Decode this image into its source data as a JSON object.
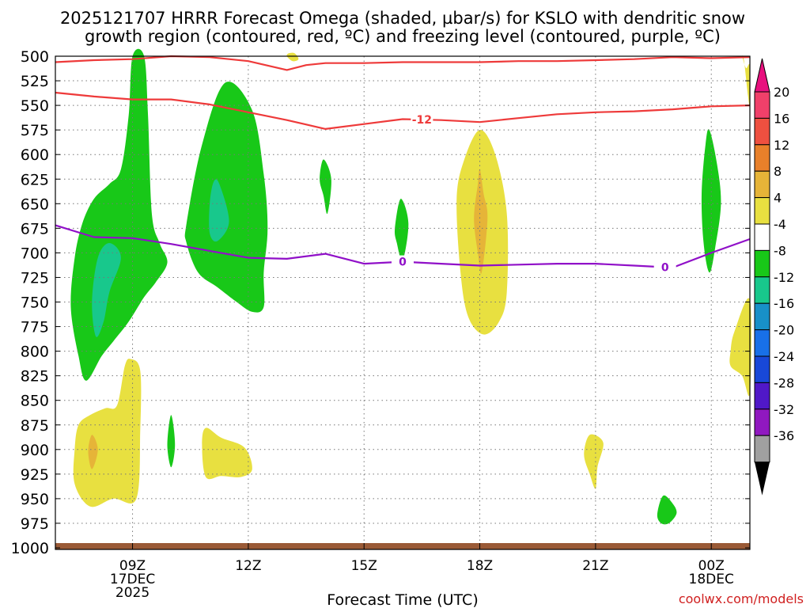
{
  "chart_data": {
    "type": "time-height contour",
    "title_line1": "2025121707 HRRR Forecast Omega (shaded, µbar/s) for KSLO with dendritic snow",
    "title_line2": "growth region (contoured, red, ºC) and freezing level (contoured, purple, ºC)",
    "xlabel": "Forecast Time (UTC)",
    "credit": "coolwx.com/models",
    "x_range_hours": [
      7,
      25
    ],
    "y_range_mb": [
      500,
      1000
    ],
    "y_ticks": [
      500,
      525,
      550,
      575,
      600,
      625,
      650,
      675,
      700,
      725,
      750,
      775,
      800,
      825,
      850,
      875,
      900,
      925,
      950,
      975,
      1000
    ],
    "x_ticks": [
      {
        "hour": 9,
        "label": "09Z",
        "sub1": "17DEC",
        "sub2": "2025"
      },
      {
        "hour": 12,
        "label": "12Z",
        "sub1": "",
        "sub2": ""
      },
      {
        "hour": 15,
        "label": "15Z",
        "sub1": "",
        "sub2": ""
      },
      {
        "hour": 18,
        "label": "18Z",
        "sub1": "",
        "sub2": ""
      },
      {
        "hour": 21,
        "label": "21Z",
        "sub1": "",
        "sub2": ""
      },
      {
        "hour": 24,
        "label": "00Z",
        "sub1": "18DEC",
        "sub2": ""
      }
    ],
    "colorbar": {
      "labels": [
        "20",
        "16",
        "12",
        "8",
        "4",
        "-4",
        "-8",
        "-12",
        "-16",
        "-20",
        "-24",
        "-28",
        "-32",
        "-36"
      ],
      "colors": [
        "#f0406a",
        "#ee5040",
        "#e8802a",
        "#e6b438",
        "#e8e040",
        "#ffffff",
        "#18c818",
        "#18c88c",
        "#1890c8",
        "#1870e8",
        "#1848d8",
        "#5018c8",
        "#9018c0",
        "#a0a0a0"
      ],
      "top_arrow_color": "#e8107e",
      "bottom_arrow_color": "#000000"
    },
    "contour_labels": {
      "dendritic_top": "-12",
      "freezing": "0"
    },
    "dendritic_upper": [
      [
        7,
        506
      ],
      [
        8,
        504
      ],
      [
        9,
        503
      ],
      [
        10,
        500
      ],
      [
        11,
        501
      ],
      [
        12,
        505
      ],
      [
        13,
        514
      ],
      [
        13.5,
        509
      ],
      [
        14,
        507
      ],
      [
        15,
        507
      ],
      [
        16,
        506
      ],
      [
        17,
        506
      ],
      [
        18,
        506
      ],
      [
        19,
        505
      ],
      [
        20,
        505
      ],
      [
        21,
        504
      ],
      [
        22,
        503
      ],
      [
        23,
        501
      ],
      [
        24,
        502
      ],
      [
        25,
        501
      ]
    ],
    "dendritic_lower": [
      [
        7,
        537
      ],
      [
        8,
        541
      ],
      [
        9,
        544
      ],
      [
        10,
        544
      ],
      [
        11,
        549
      ],
      [
        12,
        557
      ],
      [
        13,
        565
      ],
      [
        14,
        574
      ],
      [
        15,
        569
      ],
      [
        16,
        564
      ],
      [
        17,
        565
      ],
      [
        18,
        567
      ],
      [
        19,
        563
      ],
      [
        20,
        559
      ],
      [
        21,
        557
      ],
      [
        22,
        556
      ],
      [
        23,
        554
      ],
      [
        24,
        551
      ],
      [
        25,
        550
      ]
    ],
    "freezing_level": [
      [
        7,
        672
      ],
      [
        8,
        684
      ],
      [
        9,
        685
      ],
      [
        10,
        691
      ],
      [
        11,
        698
      ],
      [
        12,
        705
      ],
      [
        13,
        706
      ],
      [
        14,
        701
      ],
      [
        15,
        711
      ],
      [
        16,
        709
      ],
      [
        17,
        711
      ],
      [
        18,
        713
      ],
      [
        19,
        712
      ],
      [
        20,
        711
      ],
      [
        21,
        711
      ],
      [
        22,
        713
      ],
      [
        23,
        715
      ],
      [
        24,
        700
      ],
      [
        25,
        686
      ]
    ],
    "omega_regions": [
      {
        "value": -6,
        "points": [
          [
            7.6,
            805
          ],
          [
            7.4,
            755
          ],
          [
            7.5,
            705
          ],
          [
            7.7,
            670
          ],
          [
            8.0,
            645
          ],
          [
            8.4,
            630
          ],
          [
            8.7,
            615
          ],
          [
            8.9,
            560
          ],
          [
            9.0,
            500
          ],
          [
            9.3,
            500
          ],
          [
            9.4,
            560
          ],
          [
            9.5,
            660
          ],
          [
            9.7,
            690
          ],
          [
            9.9,
            710
          ],
          [
            9.6,
            730
          ],
          [
            9.3,
            745
          ],
          [
            8.9,
            770
          ],
          [
            8.5,
            790
          ],
          [
            8.2,
            805
          ],
          [
            7.8,
            830
          ]
        ]
      },
      {
        "value": -10,
        "points": [
          [
            8.05,
            785
          ],
          [
            7.95,
            750
          ],
          [
            8.1,
            705
          ],
          [
            8.4,
            690
          ],
          [
            8.7,
            705
          ],
          [
            8.4,
            740
          ],
          [
            8.25,
            770
          ]
        ]
      },
      {
        "value": -6,
        "points": [
          [
            10.4,
            670
          ],
          [
            10.8,
            590
          ],
          [
            11.4,
            527
          ],
          [
            12.1,
            555
          ],
          [
            12.4,
            620
          ],
          [
            12.5,
            675
          ],
          [
            12.4,
            720
          ],
          [
            12.4,
            755
          ],
          [
            12.1,
            760
          ],
          [
            11.7,
            750
          ],
          [
            11.2,
            735
          ],
          [
            10.7,
            720
          ],
          [
            10.4,
            690
          ]
        ]
      },
      {
        "value": -10,
        "points": [
          [
            11.0,
            680
          ],
          [
            11.0,
            650
          ],
          [
            11.1,
            628
          ],
          [
            11.25,
            630
          ],
          [
            11.5,
            668
          ],
          [
            11.2,
            688
          ]
        ]
      },
      {
        "value": -6,
        "points": [
          [
            13.85,
            625
          ],
          [
            13.95,
            605
          ],
          [
            14.15,
            625
          ],
          [
            14.05,
            660
          ],
          [
            13.95,
            642
          ]
        ]
      },
      {
        "value": -6,
        "points": [
          [
            15.8,
            675
          ],
          [
            15.95,
            645
          ],
          [
            16.15,
            670
          ],
          [
            16.0,
            708
          ],
          [
            15.85,
            690
          ]
        ]
      },
      {
        "value": -6,
        "points": [
          [
            23.75,
            640
          ],
          [
            23.85,
            590
          ],
          [
            23.95,
            575
          ],
          [
            24.15,
            610
          ],
          [
            24.25,
            650
          ],
          [
            24.1,
            695
          ],
          [
            23.95,
            720
          ],
          [
            23.8,
            690
          ]
        ]
      },
      {
        "value": -6,
        "points": [
          [
            9.9,
            895
          ],
          [
            10.0,
            865
          ],
          [
            10.1,
            895
          ],
          [
            10.0,
            918
          ]
        ]
      },
      {
        "value": -6,
        "points": [
          [
            22.6,
            966
          ],
          [
            22.75,
            947
          ],
          [
            23.0,
            955
          ],
          [
            23.1,
            965
          ],
          [
            22.9,
            975
          ],
          [
            22.7,
            975
          ]
        ]
      },
      {
        "value": 6,
        "points": [
          [
            17.4,
            645
          ],
          [
            17.6,
            605
          ],
          [
            18.0,
            575
          ],
          [
            18.4,
            600
          ],
          [
            18.7,
            660
          ],
          [
            18.7,
            740
          ],
          [
            18.5,
            770
          ],
          [
            18.1,
            783
          ],
          [
            17.7,
            765
          ],
          [
            17.5,
            720
          ]
        ]
      },
      {
        "value": 10,
        "points": [
          [
            17.85,
            665
          ],
          [
            17.95,
            630
          ],
          [
            18.0,
            615
          ],
          [
            18.1,
            640
          ],
          [
            18.2,
            665
          ],
          [
            18.05,
            720
          ],
          [
            17.95,
            700
          ]
        ]
      },
      {
        "value": 6,
        "points": [
          [
            7.5,
            900
          ],
          [
            7.6,
            875
          ],
          [
            7.9,
            865
          ],
          [
            8.3,
            858
          ],
          [
            8.6,
            855
          ],
          [
            8.8,
            815
          ],
          [
            8.95,
            808
          ],
          [
            9.2,
            820
          ],
          [
            9.2,
            880
          ],
          [
            9.1,
            950
          ],
          [
            8.5,
            950
          ],
          [
            7.9,
            958
          ],
          [
            7.5,
            935
          ]
        ]
      },
      {
        "value": 10,
        "points": [
          [
            7.85,
            902
          ],
          [
            7.95,
            885
          ],
          [
            8.1,
            900
          ],
          [
            7.95,
            920
          ]
        ]
      },
      {
        "value": 6,
        "points": [
          [
            10.8,
            895
          ],
          [
            10.9,
            878
          ],
          [
            11.3,
            888
          ],
          [
            11.9,
            898
          ],
          [
            12.1,
            920
          ],
          [
            11.8,
            928
          ],
          [
            11.3,
            927
          ],
          [
            10.9,
            928
          ]
        ]
      },
      {
        "value": 6,
        "points": [
          [
            20.7,
            905
          ],
          [
            20.85,
            885
          ],
          [
            21.2,
            893
          ],
          [
            21.05,
            918
          ],
          [
            21.0,
            940
          ],
          [
            20.85,
            925
          ]
        ]
      },
      {
        "value": 6,
        "points": [
          [
            13.0,
            500
          ],
          [
            13.05,
            497
          ],
          [
            13.2,
            497
          ],
          [
            13.3,
            503
          ],
          [
            13.15,
            505
          ]
        ]
      },
      {
        "value": 6,
        "points": [
          [
            24.8,
            500
          ],
          [
            24.9,
            512
          ],
          [
            25.0,
            510
          ],
          [
            25.0,
            550
          ],
          [
            24.95,
            540
          ],
          [
            24.85,
            505
          ]
        ]
      },
      {
        "value": 6,
        "points": [
          [
            24.5,
            800
          ],
          [
            24.6,
            780
          ],
          [
            25.0,
            748
          ],
          [
            25.0,
            842
          ],
          [
            24.8,
            825
          ],
          [
            24.5,
            815
          ]
        ]
      }
    ]
  }
}
